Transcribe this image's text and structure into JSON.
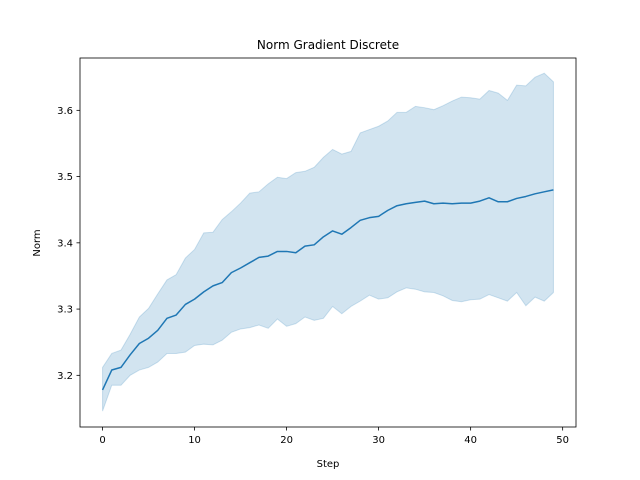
{
  "chart_data": {
    "type": "line",
    "title": "Norm Gradient Discrete",
    "xlabel": "Step",
    "ylabel": "Norm",
    "xlim": [
      -2.45,
      51.45
    ],
    "ylim": [
      3.122,
      3.679
    ],
    "xticks": [
      0,
      10,
      20,
      30,
      40,
      50
    ],
    "yticks": [
      3.2,
      3.3,
      3.4,
      3.5,
      3.6
    ],
    "ytick_labels": [
      "3.2",
      "3.3",
      "3.4",
      "3.5",
      "3.6"
    ],
    "grid": false,
    "colors": {
      "line": "#1f77b4",
      "band": "#1f77b4"
    },
    "series": [
      {
        "x": [
          0,
          1,
          2,
          3,
          4,
          5,
          6,
          7,
          8,
          9,
          10,
          11,
          12,
          13,
          14,
          15,
          16,
          17,
          18,
          19,
          20,
          21,
          22,
          23,
          24,
          25,
          26,
          27,
          28,
          29,
          30,
          31,
          32,
          33,
          34,
          35,
          36,
          37,
          38,
          39,
          40,
          41,
          42,
          43,
          44,
          45,
          46,
          47,
          48,
          49
        ],
        "mean": [
          3.178,
          3.208,
          3.212,
          3.231,
          3.248,
          3.256,
          3.268,
          3.286,
          3.291,
          3.307,
          3.315,
          3.326,
          3.335,
          3.34,
          3.355,
          3.362,
          3.37,
          3.378,
          3.38,
          3.387,
          3.387,
          3.385,
          3.395,
          3.397,
          3.409,
          3.418,
          3.413,
          3.423,
          3.434,
          3.438,
          3.44,
          3.449,
          3.456,
          3.459,
          3.461,
          3.463,
          3.459,
          3.46,
          3.459,
          3.46,
          3.46,
          3.463,
          3.468,
          3.462,
          3.462,
          3.467,
          3.47,
          3.474,
          3.477,
          3.48
        ],
        "lower": [
          3.146,
          3.185,
          3.185,
          3.2,
          3.208,
          3.212,
          3.22,
          3.233,
          3.233,
          3.235,
          3.245,
          3.247,
          3.246,
          3.253,
          3.265,
          3.27,
          3.272,
          3.276,
          3.271,
          3.285,
          3.274,
          3.278,
          3.288,
          3.283,
          3.286,
          3.304,
          3.293,
          3.304,
          3.312,
          3.321,
          3.315,
          3.317,
          3.326,
          3.332,
          3.33,
          3.326,
          3.325,
          3.32,
          3.313,
          3.311,
          3.314,
          3.315,
          3.322,
          3.317,
          3.312,
          3.325,
          3.305,
          3.318,
          3.312,
          3.325
        ],
        "upper": [
          3.212,
          3.233,
          3.238,
          3.262,
          3.288,
          3.301,
          3.323,
          3.344,
          3.352,
          3.377,
          3.39,
          3.415,
          3.416,
          3.435,
          3.447,
          3.46,
          3.475,
          3.477,
          3.489,
          3.499,
          3.497,
          3.506,
          3.508,
          3.514,
          3.529,
          3.541,
          3.534,
          3.538,
          3.566,
          3.571,
          3.576,
          3.584,
          3.597,
          3.597,
          3.606,
          3.604,
          3.601,
          3.607,
          3.614,
          3.62,
          3.619,
          3.617,
          3.63,
          3.626,
          3.615,
          3.638,
          3.637,
          3.65,
          3.656,
          3.643
        ]
      }
    ]
  }
}
